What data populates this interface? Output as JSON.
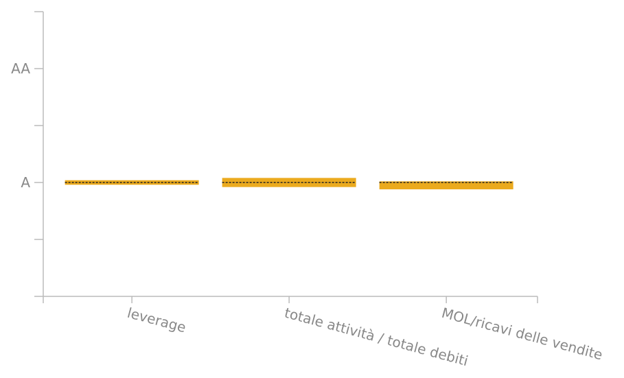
{
  "chart_data": {
    "type": "bar",
    "categories": [
      "leverage",
      "totale attività / totale debiti",
      "MOL/ricavi delle vendite"
    ],
    "y_ticks": [
      {
        "label": "A",
        "value": 1
      },
      {
        "label": "AA",
        "value": 2
      }
    ],
    "ylim": [
      0,
      2.5
    ],
    "series": [
      {
        "values": [
          [
            1.02,
            0.98
          ],
          [
            1.04,
            0.96
          ],
          [
            1.01,
            0.94
          ]
        ]
      }
    ],
    "baseline": [
      1.0,
      1.0,
      1.0
    ],
    "colors": {
      "bar": "#EBAA1E",
      "baseline": "#222222",
      "axis": "#BBBBBB",
      "text": "#888888"
    },
    "grid": false
  }
}
